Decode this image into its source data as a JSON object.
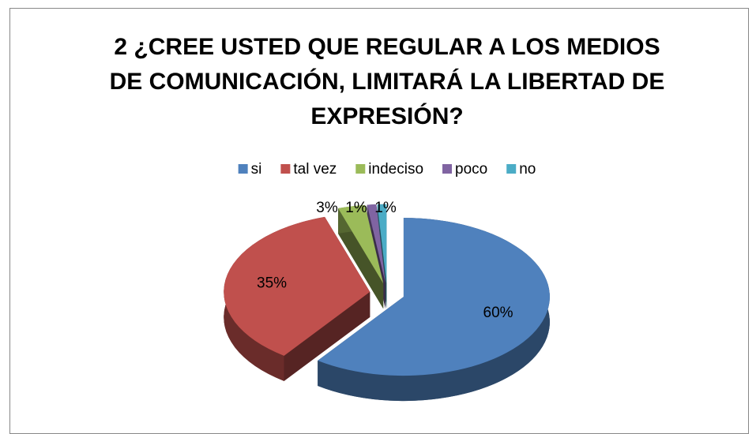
{
  "chart_data": {
    "type": "pie",
    "title": "2 ¿CREE USTED QUE REGULAR A LOS MEDIOS DE COMUNICACIÓN, LIMITARÁ LA LIBERTAD DE EXPRESIÓN?",
    "categories": [
      "si",
      "tal vez",
      "indeciso",
      "poco",
      "no"
    ],
    "values": [
      60,
      35,
      3,
      1,
      1
    ],
    "value_labels": [
      "60%",
      "35%",
      "3%",
      "1%",
      "1%"
    ],
    "colors": [
      "#4f81bd",
      "#c0504d",
      "#9bbb59",
      "#8064a2",
      "#4bacc6"
    ],
    "legend": "top",
    "three_d": true,
    "exploded": true
  }
}
